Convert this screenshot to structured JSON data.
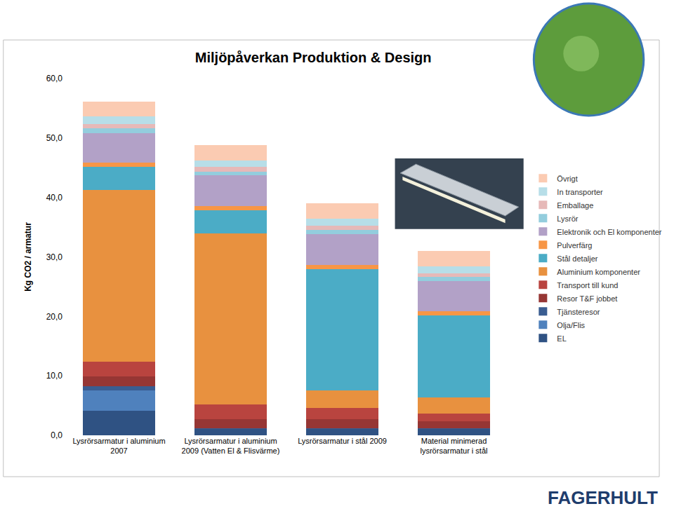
{
  "chart_data": {
    "type": "bar",
    "title": "Miljöpåverkan Produktion & Design",
    "y_label": "Kg CO2 / armatur",
    "stacked": true,
    "grid": false,
    "legend": "right",
    "categories": [
      "Lysrörsarmatur i aluminium\n2007",
      "Lysrörsarmatur i aluminium\n2009 (Vatten El & Flisvärme)",
      "Lysrörsarmatur i stål 2009",
      "Material minimerad\nlysrörsarmatur i stål"
    ],
    "series": [
      {
        "name": "EL",
        "color": "#2f5283",
        "values": [
          4.1,
          1.1,
          1.1,
          1.1
        ]
      },
      {
        "name": "Olja/Flis",
        "color": "#4f81bd",
        "values": [
          3.5,
          0,
          0,
          0
        ]
      },
      {
        "name": "Tjänsteresor",
        "color": "#3a5d91",
        "values": [
          0.6,
          0.1,
          0.1,
          0.1
        ]
      },
      {
        "name": "Resor T&F jobbet",
        "color": "#963634",
        "values": [
          1.7,
          1.5,
          1.5,
          1.2
        ]
      },
      {
        "name": "Transport till kund",
        "color": "#b9443f",
        "values": [
          2.5,
          2.5,
          1.9,
          1.2
        ]
      },
      {
        "name": "Aluminium komponenter",
        "color": "#e8913f",
        "values": [
          28.8,
          28.8,
          2.9,
          2.8
        ]
      },
      {
        "name": "Stål detaljer",
        "color": "#4bacc6",
        "values": [
          3.9,
          3.8,
          20.4,
          13.8
        ]
      },
      {
        "name": "Pulverfärg",
        "color": "#f79646",
        "values": [
          0.7,
          0.8,
          0.8,
          0.7
        ]
      },
      {
        "name": "Elektronik och El komponenter",
        "color": "#b2a1c7",
        "values": [
          5.0,
          5.1,
          5.1,
          5.0
        ]
      },
      {
        "name": "Lysrör",
        "color": "#93cddd",
        "values": [
          0.8,
          0.6,
          0.7,
          0.7
        ]
      },
      {
        "name": "Emballage",
        "color": "#e6b9b8",
        "values": [
          0.7,
          0.8,
          0.8,
          0.6
        ]
      },
      {
        "name": "In transporter",
        "color": "#b7dee8",
        "values": [
          1.3,
          1.1,
          1.1,
          1.2
        ]
      },
      {
        "name": "Övrigt",
        "color": "#fbcbb2",
        "values": [
          2.5,
          2.6,
          2.6,
          2.6
        ]
      }
    ],
    "ylim": [
      0,
      60
    ],
    "yticks": [
      {
        "value": 0,
        "label": "0,0"
      },
      {
        "value": 10,
        "label": "10,0"
      },
      {
        "value": 20,
        "label": "20,0"
      },
      {
        "value": 30,
        "label": "30,0"
      },
      {
        "value": 40,
        "label": "40,0"
      },
      {
        "value": 50,
        "label": "50,0"
      },
      {
        "value": 60,
        "label": "60,0"
      }
    ],
    "annotations": [
      "FAGERHULT"
    ]
  }
}
